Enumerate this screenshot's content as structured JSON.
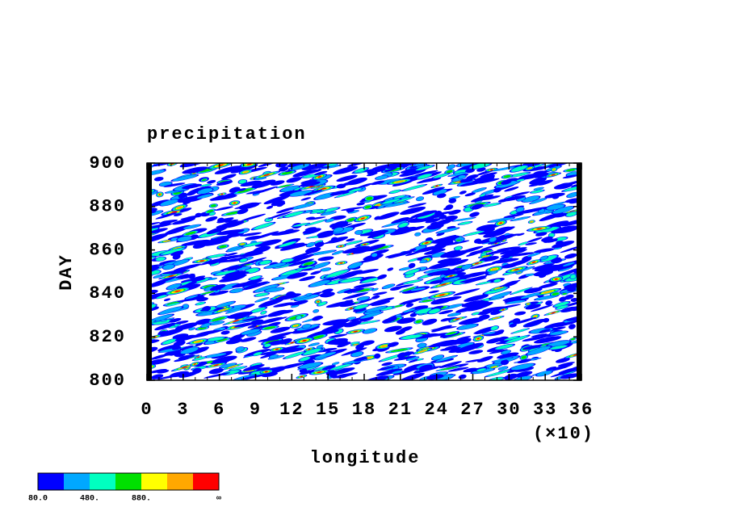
{
  "chart_data": {
    "type": "contour",
    "title": "precipitation",
    "x_label": "longitude",
    "y_label": "DAY",
    "x_multiplier": "(×10)",
    "xlim": [
      0,
      36
    ],
    "xticks": [
      0,
      3,
      6,
      9,
      12,
      15,
      18,
      21,
      24,
      27,
      30,
      33,
      36
    ],
    "ylim": [
      800,
      900
    ],
    "yticks": [
      800,
      820,
      840,
      860,
      880,
      900
    ],
    "colorbar": {
      "colors": [
        "#0000ff",
        "#00a8ff",
        "#00ffc0",
        "#00e000",
        "#ffff00",
        "#ffa800",
        "#ff0000"
      ],
      "labels": [
        "80.0",
        "480.",
        "880.",
        "∞"
      ]
    }
  }
}
